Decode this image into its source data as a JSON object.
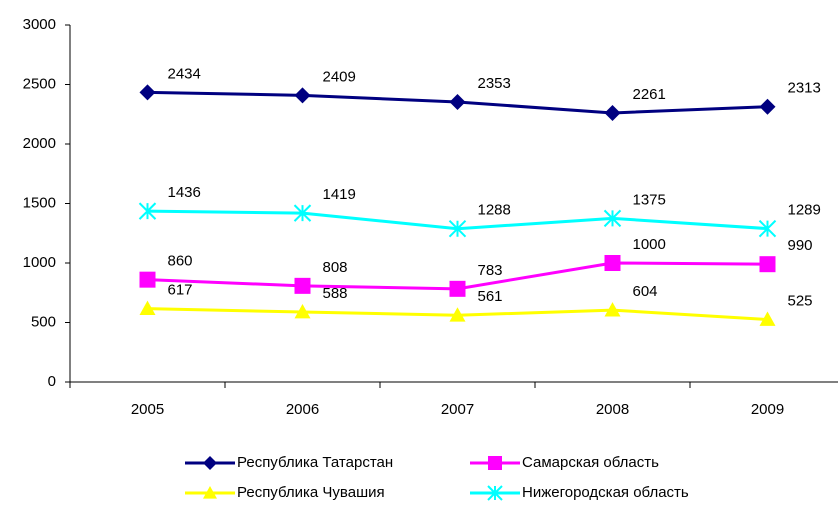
{
  "chart_data": {
    "type": "line",
    "categories": [
      "2005",
      "2006",
      "2007",
      "2008",
      "2009"
    ],
    "series": [
      {
        "name": "Республика Татарстан",
        "color": "#000080",
        "marker": "diamond",
        "values": [
          2434,
          2409,
          2353,
          2261,
          2313
        ]
      },
      {
        "name": "Самарская область",
        "color": "#ff00ff",
        "marker": "square",
        "values": [
          860,
          808,
          783,
          1000,
          990
        ]
      },
      {
        "name": "Республика Чувашия",
        "color": "#ffff00",
        "marker": "triangle",
        "values": [
          617,
          588,
          561,
          604,
          525
        ]
      },
      {
        "name": "Нижегородская область",
        "color": "#00ffff",
        "marker": "star",
        "values": [
          1436,
          1419,
          1288,
          1375,
          1289
        ]
      }
    ],
    "ylim": [
      0,
      3000
    ],
    "yticks": [
      0,
      500,
      1000,
      1500,
      2000,
      2500,
      3000
    ],
    "grid": false,
    "legend": "bottom"
  }
}
